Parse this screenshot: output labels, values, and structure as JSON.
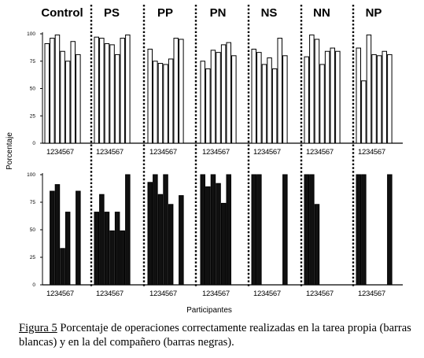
{
  "chart_data": {
    "type": "bar",
    "ylabel": "Porcentaje",
    "xlabel": "Participantes",
    "yticks": [
      0,
      25,
      50,
      75,
      100
    ],
    "ylim": [
      0,
      100
    ],
    "participants": [
      "1",
      "2",
      "3",
      "4",
      "5",
      "6",
      "7"
    ],
    "tick_string": "1234567",
    "groups": [
      "Control",
      "PS",
      "PP",
      "PN",
      "NS",
      "NN",
      "NP"
    ],
    "panels": [
      {
        "name": "top",
        "bar_color": "#ffffff",
        "values": {
          "Control": [
            91,
            96,
            99,
            84,
            75,
            93,
            81
          ],
          "PS": [
            97,
            96,
            91,
            90,
            81,
            96,
            99
          ],
          "PP": [
            86,
            75,
            73,
            72,
            77,
            96,
            95
          ],
          "PN": [
            75,
            68,
            85,
            83,
            90,
            92,
            80
          ],
          "NS": [
            86,
            83,
            72,
            78,
            68,
            96,
            80
          ],
          "NN": [
            79,
            99,
            95,
            72,
            84,
            87,
            84
          ],
          "NP": [
            87,
            57,
            99,
            81,
            80,
            84,
            81
          ]
        }
      },
      {
        "name": "bottom",
        "bar_color": "#111111",
        "values": {
          "Control": [
            0,
            85,
            91,
            33,
            66,
            0,
            85
          ],
          "PS": [
            66,
            82,
            66,
            49,
            66,
            49,
            100
          ],
          "PP": [
            93,
            100,
            82,
            100,
            73,
            0,
            81
          ],
          "PN": [
            100,
            89,
            100,
            92,
            74,
            100,
            0
          ],
          "NS": [
            100,
            100,
            0,
            0,
            0,
            0,
            100
          ],
          "NN": [
            100,
            100,
            73,
            0,
            0,
            0,
            0
          ],
          "NP": [
            100,
            100,
            0,
            0,
            0,
            0,
            100
          ]
        }
      }
    ]
  },
  "caption": {
    "figure_label": "Figura 5",
    "text": " Porcentaje de operaciones correctamente realizadas en la tarea propia (barras blancas) y en la del compañero (barras negras)."
  }
}
